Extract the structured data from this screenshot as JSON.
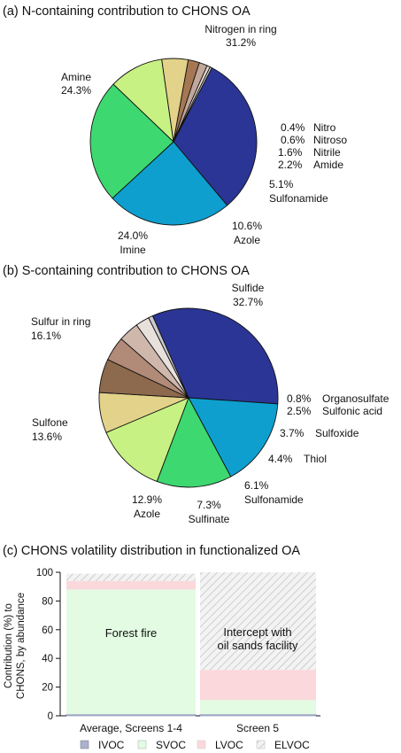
{
  "colors": {
    "pie_n": [
      "#2b3595",
      "#0e9fcf",
      "#3ed870",
      "#c7f183",
      "#e3d28a",
      "#a57753",
      "#c2a79a",
      "#e5dcd6"
    ],
    "pie_s": [
      "#2b3595",
      "#0e9fcf",
      "#3ed870",
      "#c7f183",
      "#e3d28a",
      "#8d6a4d",
      "#b18a78",
      "#cfb7ac",
      "#e8e0db"
    ],
    "ivoc": "#aab0d0",
    "svoc": "#e2fbe2",
    "lvoc": "#fbd8dc",
    "elvoc_hatch": "#cfcfcf"
  },
  "chart_data": [
    {
      "type": "pie",
      "title": "(a) N-containing contribution to CHONS OA",
      "categories": [
        "Nitrogen in ring",
        "Amine",
        "Imine",
        "Azole",
        "Sulfonamide",
        "Amide",
        "Nitrile",
        "Nitroso",
        "Nitro"
      ],
      "values": [
        31.2,
        24.3,
        24.0,
        10.6,
        5.1,
        2.2,
        1.6,
        0.6,
        0.4
      ],
      "value_labels": [
        "31.2%",
        "24.3%",
        "24.0%",
        "10.6%",
        "5.1%",
        "2.2%",
        "1.6%",
        "0.6%",
        "0.4%"
      ]
    },
    {
      "type": "pie",
      "title": "(b) S-containing contribution to CHONS OA",
      "categories": [
        "Sulfide",
        "Sulfur in ring",
        "Sulfone",
        "Azole",
        "Sulfinate",
        "Sulfonamide",
        "Thiol",
        "Sulfoxide",
        "Sulfonic acid",
        "Organosulfate"
      ],
      "values": [
        32.7,
        16.1,
        13.6,
        12.9,
        7.3,
        6.1,
        4.4,
        3.7,
        2.5,
        0.8
      ],
      "value_labels": [
        "32.7%",
        "16.1%",
        "13.6%",
        "12.9%",
        "7.3%",
        "6.1%",
        "4.4%",
        "3.7%",
        "2.5%",
        "0.8%"
      ]
    },
    {
      "type": "bar",
      "stacked": true,
      "title": "(c) CHONS volatility distribution in functionalized OA",
      "ylabel_lines": [
        "Contribution (%) to",
        "CHONS, by abundance"
      ],
      "ylim": [
        0,
        100
      ],
      "yticks": [
        0,
        20,
        40,
        60,
        80,
        100
      ],
      "categories": [
        "Average, Screens 1-4",
        "Screen 5"
      ],
      "annotations": [
        [
          "Forest fire"
        ],
        [
          "Intercept with",
          "oil sands facility"
        ]
      ],
      "series": [
        {
          "name": "IVOC",
          "values": [
            1,
            1
          ]
        },
        {
          "name": "SVOC",
          "values": [
            87,
            10
          ]
        },
        {
          "name": "LVOC",
          "values": [
            6,
            21
          ]
        },
        {
          "name": "ELVOC",
          "values": [
            5,
            68
          ]
        }
      ],
      "legend_position": "bottom"
    }
  ]
}
